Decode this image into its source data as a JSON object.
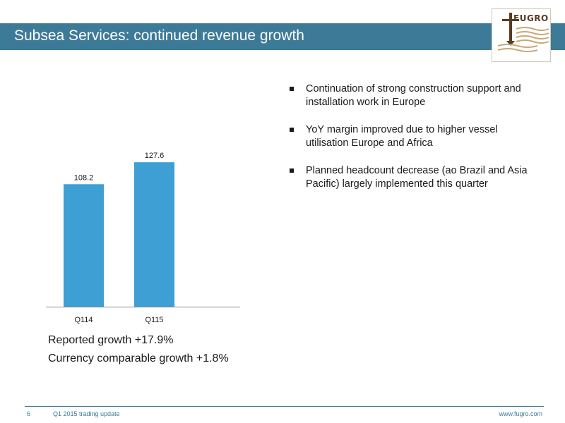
{
  "slide": {
    "title": "Subsea Services: continued revenue growth"
  },
  "logo": {
    "text": "FUGRO",
    "colors": {
      "primary": "#5a3a1e",
      "accent": "#c9a877"
    }
  },
  "bullets": [
    {
      "text": "Continuation of strong construction support and installation work in Europe"
    },
    {
      "text": "YoY margin improved due to higher vessel utilisation Europe and Africa"
    },
    {
      "text": "Planned headcount decrease (ao Brazil and Asia Pacific) largely implemented this quarter"
    }
  ],
  "growth": {
    "reported": "Reported growth +17.9%",
    "currency": "Currency comparable growth +1.8%"
  },
  "footer": {
    "page_number": "6",
    "title": "Q1 2015 trading update",
    "url": "www.fugro.com"
  },
  "chart_data": {
    "type": "bar",
    "categories": [
      "Q114",
      "Q115"
    ],
    "values": [
      108.2,
      127.6
    ],
    "data_labels": [
      "108.2",
      "127.6"
    ],
    "ylim": [
      0,
      190
    ],
    "bar_color": "#3d9fd3",
    "grid": false,
    "legend": "none"
  },
  "colors": {
    "title_bar": "#3d7a98",
    "title_text": "#ffffff",
    "footer": "#3d7a98"
  }
}
